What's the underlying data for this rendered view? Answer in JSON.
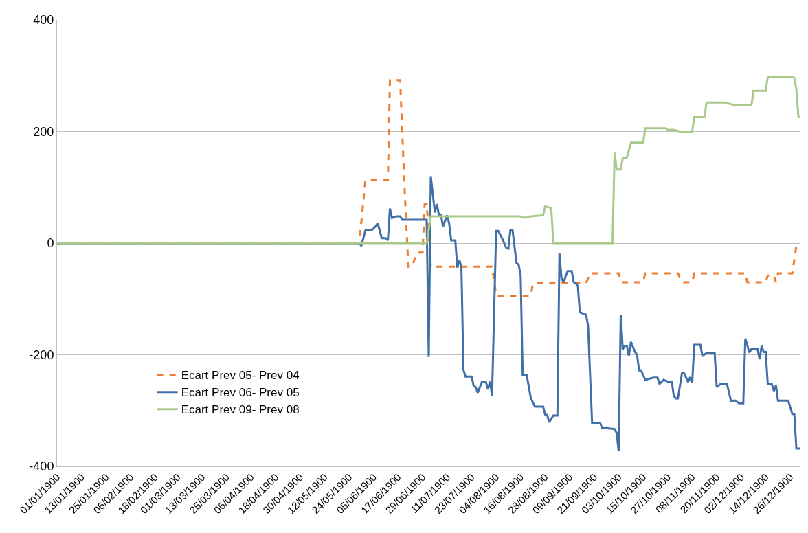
{
  "chart_data": {
    "type": "line",
    "xlim": [
      "1900-01-01",
      "1900-12-31"
    ],
    "xticks": [
      {
        "value": "1900-01-01",
        "label": "01/01/1900"
      },
      {
        "value": "1900-01-13",
        "label": "13/01/1900"
      },
      {
        "value": "1900-01-25",
        "label": "25/01/1900"
      },
      {
        "value": "1900-02-06",
        "label": "06/02/1900"
      },
      {
        "value": "1900-02-18",
        "label": "18/02/1900"
      },
      {
        "value": "1900-03-01",
        "label": "01/03/1900"
      },
      {
        "value": "1900-03-13",
        "label": "13/03/1900"
      },
      {
        "value": "1900-03-25",
        "label": "25/03/1900"
      },
      {
        "value": "1900-04-06",
        "label": "06/04/1900"
      },
      {
        "value": "1900-04-18",
        "label": "18/04/1900"
      },
      {
        "value": "1900-04-30",
        "label": "30/04/1900"
      },
      {
        "value": "1900-05-12",
        "label": "12/05/1900"
      },
      {
        "value": "1900-05-24",
        "label": "24/05/1900"
      },
      {
        "value": "1900-06-05",
        "label": "05/06/1900"
      },
      {
        "value": "1900-06-17",
        "label": "17/06/1900"
      },
      {
        "value": "1900-06-29",
        "label": "29/06/1900"
      },
      {
        "value": "1900-07-11",
        "label": "11/07/1900"
      },
      {
        "value": "1900-07-23",
        "label": "23/07/1900"
      },
      {
        "value": "1900-08-04",
        "label": "04/08/1900"
      },
      {
        "value": "1900-08-16",
        "label": "16/08/1900"
      },
      {
        "value": "1900-08-28",
        "label": "28/08/1900"
      },
      {
        "value": "1900-09-09",
        "label": "09/09/1900"
      },
      {
        "value": "1900-09-21",
        "label": "21/09/1900"
      },
      {
        "value": "1900-10-03",
        "label": "03/10/1900"
      },
      {
        "value": "1900-10-15",
        "label": "15/10/1900"
      },
      {
        "value": "1900-10-27",
        "label": "27/10/1900"
      },
      {
        "value": "1900-11-08",
        "label": "08/11/1900"
      },
      {
        "value": "1900-11-20",
        "label": "20/11/1900"
      },
      {
        "value": "1900-12-02",
        "label": "02/12/1900"
      },
      {
        "value": "1900-12-14",
        "label": "14/12/1900"
      },
      {
        "value": "1900-12-26",
        "label": "26/12/1900"
      }
    ],
    "ylim": [
      -400,
      400
    ],
    "yticks": [
      -400,
      -200,
      0,
      200,
      400
    ],
    "grid": "y",
    "legend": "bottom left",
    "marker": "none",
    "series": [
      {
        "name": "Ecart Prev 05- Prev 04",
        "color": "#ed7d31",
        "line_style": "dashed",
        "x": [
          "1900-01-01",
          "1900-05-29",
          "1900-06-01",
          "1900-06-12",
          "1900-06-13",
          "1900-06-18",
          "1900-06-20",
          "1900-06-22",
          "1900-06-24",
          "1900-06-26",
          "1900-06-29",
          "1900-06-30",
          "1900-07-01",
          "1900-07-03",
          "1900-08-02",
          "1900-08-04",
          "1900-08-21",
          "1900-08-22",
          "1900-09-17",
          "1900-09-19",
          "1900-10-03",
          "1900-10-04",
          "1900-10-15",
          "1900-10-16",
          "1900-11-01",
          "1900-11-03",
          "1900-11-08",
          "1900-11-09",
          "1900-12-04",
          "1900-12-05",
          "1900-12-14",
          "1900-12-15",
          "1900-12-18",
          "1900-12-19",
          "1900-12-20",
          "1900-12-27",
          "1900-12-29"
        ],
        "values": [
          0,
          0,
          113,
          113,
          292,
          292,
          112,
          -42,
          -42,
          -17,
          -17,
          70,
          70,
          -42,
          -42,
          -94,
          -94,
          -72,
          -72,
          -54,
          -54,
          -70,
          -70,
          -54,
          -54,
          -70,
          -70,
          -54,
          -54,
          -70,
          -70,
          -58,
          -58,
          -70,
          -54,
          -54,
          -5
        ]
      },
      {
        "name": "Ecart Prev 06- Prev 05",
        "color": "#4170a9",
        "line_style": "solid",
        "x": [
          "1900-01-01",
          "1900-05-29",
          "1900-05-30",
          "1900-06-01",
          "1900-06-04",
          "1900-06-06",
          "1900-06-07",
          "1900-06-09",
          "1900-06-11",
          "1900-06-12",
          "1900-06-13",
          "1900-06-14",
          "1900-06-16",
          "1900-06-18",
          "1900-06-19",
          "1900-07-01",
          "1900-07-02",
          "1900-07-03",
          "1900-07-05",
          "1900-07-06",
          "1900-07-07",
          "1900-07-08",
          "1900-07-09",
          "1900-07-11",
          "1900-07-12",
          "1900-07-13",
          "1900-07-15",
          "1900-07-16",
          "1900-07-17",
          "1900-07-18",
          "1900-07-19",
          "1900-07-20",
          "1900-07-23",
          "1900-07-24",
          "1900-07-25",
          "1900-07-26",
          "1900-07-28",
          "1900-07-30",
          "1900-07-31",
          "1900-08-01",
          "1900-08-02",
          "1900-08-04",
          "1900-08-05",
          "1900-08-07",
          "1900-08-09",
          "1900-08-10",
          "1900-08-11",
          "1900-08-12",
          "1900-08-14",
          "1900-08-15",
          "1900-08-16",
          "1900-08-17",
          "1900-08-19",
          "1900-08-21",
          "1900-08-23",
          "1900-08-27",
          "1900-08-28",
          "1900-08-29",
          "1900-08-30",
          "1900-09-01",
          "1900-09-03",
          "1900-09-04",
          "1900-09-05",
          "1900-09-06",
          "1900-09-08",
          "1900-09-10",
          "1900-09-11",
          "1900-09-12",
          "1900-09-13",
          "1900-09-14",
          "1900-09-17",
          "1900-09-18",
          "1900-09-20",
          "1900-09-24",
          "1900-09-25",
          "1900-09-27",
          "1900-09-28",
          "1900-10-01",
          "1900-10-02",
          "1900-10-03",
          "1900-10-04",
          "1900-10-05",
          "1900-10-06",
          "1900-10-07",
          "1900-10-08",
          "1900-10-09",
          "1900-10-11",
          "1900-10-12",
          "1900-10-13",
          "1900-10-14",
          "1900-10-16",
          "1900-10-20",
          "1900-10-22",
          "1900-10-23",
          "1900-10-25",
          "1900-10-27",
          "1900-10-29",
          "1900-10-30",
          "1900-10-31",
          "1900-11-01",
          "1900-11-03",
          "1900-11-04",
          "1900-11-06",
          "1900-11-07",
          "1900-11-08",
          "1900-11-09",
          "1900-11-12",
          "1900-11-13",
          "1900-11-15",
          "1900-11-19",
          "1900-11-20",
          "1900-11-22",
          "1900-11-25",
          "1900-11-27",
          "1900-11-29",
          "1900-12-01",
          "1900-12-03",
          "1900-12-04",
          "1900-12-06",
          "1900-12-07",
          "1900-12-10",
          "1900-12-11",
          "1900-12-12",
          "1900-12-13",
          "1900-12-14",
          "1900-12-15",
          "1900-12-17",
          "1900-12-18",
          "1900-12-19",
          "1900-12-20",
          "1900-12-25",
          "1900-12-27",
          "1900-12-28",
          "1900-12-29",
          "1900-12-31"
        ],
        "values": [
          0,
          0,
          -5,
          23,
          23,
          30,
          36,
          9,
          9,
          5,
          62,
          45,
          48,
          48,
          42,
          42,
          -204,
          120,
          55,
          70,
          50,
          50,
          30,
          50,
          35,
          5,
          5,
          -44,
          -30,
          -44,
          -227,
          -239,
          -239,
          -256,
          -258,
          -268,
          -249,
          -249,
          -262,
          -248,
          -273,
          22,
          22,
          8,
          -9,
          -10,
          24,
          24,
          -36,
          -38,
          -57,
          -237,
          -237,
          -278,
          -293,
          -293,
          -307,
          -308,
          -321,
          -309,
          -309,
          -18,
          -63,
          -70,
          -50,
          -50,
          -70,
          -72,
          -77,
          -124,
          -128,
          -147,
          -323,
          -323,
          -332,
          -330,
          -332,
          -333,
          -340,
          -373,
          -128,
          -190,
          -184,
          -184,
          -202,
          -177,
          -195,
          -200,
          -228,
          -228,
          -245,
          -241,
          -241,
          -252,
          -245,
          -248,
          -248,
          -274,
          -278,
          -278,
          -233,
          -233,
          -249,
          -240,
          -250,
          -182,
          -182,
          -202,
          -197,
          -197,
          -258,
          -252,
          -252,
          -283,
          -282,
          -287,
          -287,
          -171,
          -196,
          -190,
          -190,
          -208,
          -184,
          -195,
          -195,
          -253,
          -253,
          -265,
          -255,
          -282,
          -282,
          -306,
          -306,
          -368,
          -368
        ]
      },
      {
        "name": "Ecart Prev 09- Prev 08",
        "color": "#a9c98b",
        "line_style": "solid",
        "x": [
          "1900-01-01",
          "1900-07-01",
          "1900-07-03",
          "1900-08-16",
          "1900-08-17",
          "1900-08-19",
          "1900-08-21",
          "1900-08-27",
          "1900-08-28",
          "1900-08-31",
          "1900-09-01",
          "1900-09-30",
          "1900-10-01",
          "1900-10-02",
          "1900-10-04",
          "1900-10-05",
          "1900-10-07",
          "1900-10-09",
          "1900-10-15",
          "1900-10-16",
          "1900-10-26",
          "1900-10-27",
          "1900-10-30",
          "1900-11-02",
          "1900-11-08",
          "1900-11-09",
          "1900-11-14",
          "1900-11-15",
          "1900-11-24",
          "1900-11-26",
          "1900-11-29",
          "1900-12-07",
          "1900-12-08",
          "1900-12-14",
          "1900-12-15",
          "1900-12-27",
          "1900-12-28",
          "1900-12-29",
          "1900-12-30",
          "1900-12-31"
        ],
        "values": [
          0,
          0,
          48,
          48,
          46,
          46,
          48,
          50,
          66,
          63,
          0,
          0,
          162,
          132,
          132,
          153,
          153,
          180,
          180,
          206,
          206,
          203,
          203,
          200,
          200,
          226,
          226,
          252,
          252,
          250,
          247,
          247,
          273,
          273,
          298,
          298,
          296,
          275,
          226,
          226
        ]
      }
    ]
  }
}
